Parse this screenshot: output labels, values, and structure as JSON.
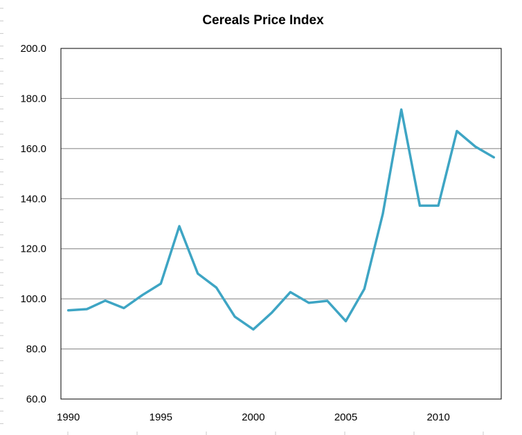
{
  "chart_data": {
    "type": "line",
    "title": "Cereals Price Index",
    "xlabel": "",
    "ylabel": "",
    "x": [
      1990,
      1991,
      1992,
      1993,
      1994,
      1995,
      1996,
      1997,
      1998,
      1999,
      2000,
      2001,
      2002,
      2003,
      2004,
      2005,
      2006,
      2007,
      2008,
      2009,
      2010,
      2011,
      2012,
      2013
    ],
    "series": [
      {
        "values": [
          95.4,
          95.9,
          99.3,
          96.3,
          101.5,
          106.1,
          129.0,
          110.1,
          104.5,
          92.9,
          87.8,
          94.5,
          102.7,
          98.4,
          99.2,
          91.1,
          104.0,
          134.0,
          175.6,
          137.2,
          137.2,
          167.0,
          160.8,
          156.5
        ],
        "color": "#3ea5c4"
      }
    ],
    "xlim": [
      1989.6,
      2013.4
    ],
    "ylim": [
      60,
      200
    ],
    "xticks": [
      "1990",
      "1995",
      "2000",
      "2005",
      "2010"
    ],
    "xtick_values": [
      1990,
      1995,
      2000,
      2005,
      2010
    ],
    "yticks": [
      "60.0",
      "80.0",
      "100.0",
      "120.0",
      "140.0",
      "160.0",
      "180.0",
      "200.0"
    ],
    "ytick_values": [
      60,
      80,
      100,
      120,
      140,
      160,
      180,
      200
    ],
    "grid": true,
    "legend": "none"
  }
}
